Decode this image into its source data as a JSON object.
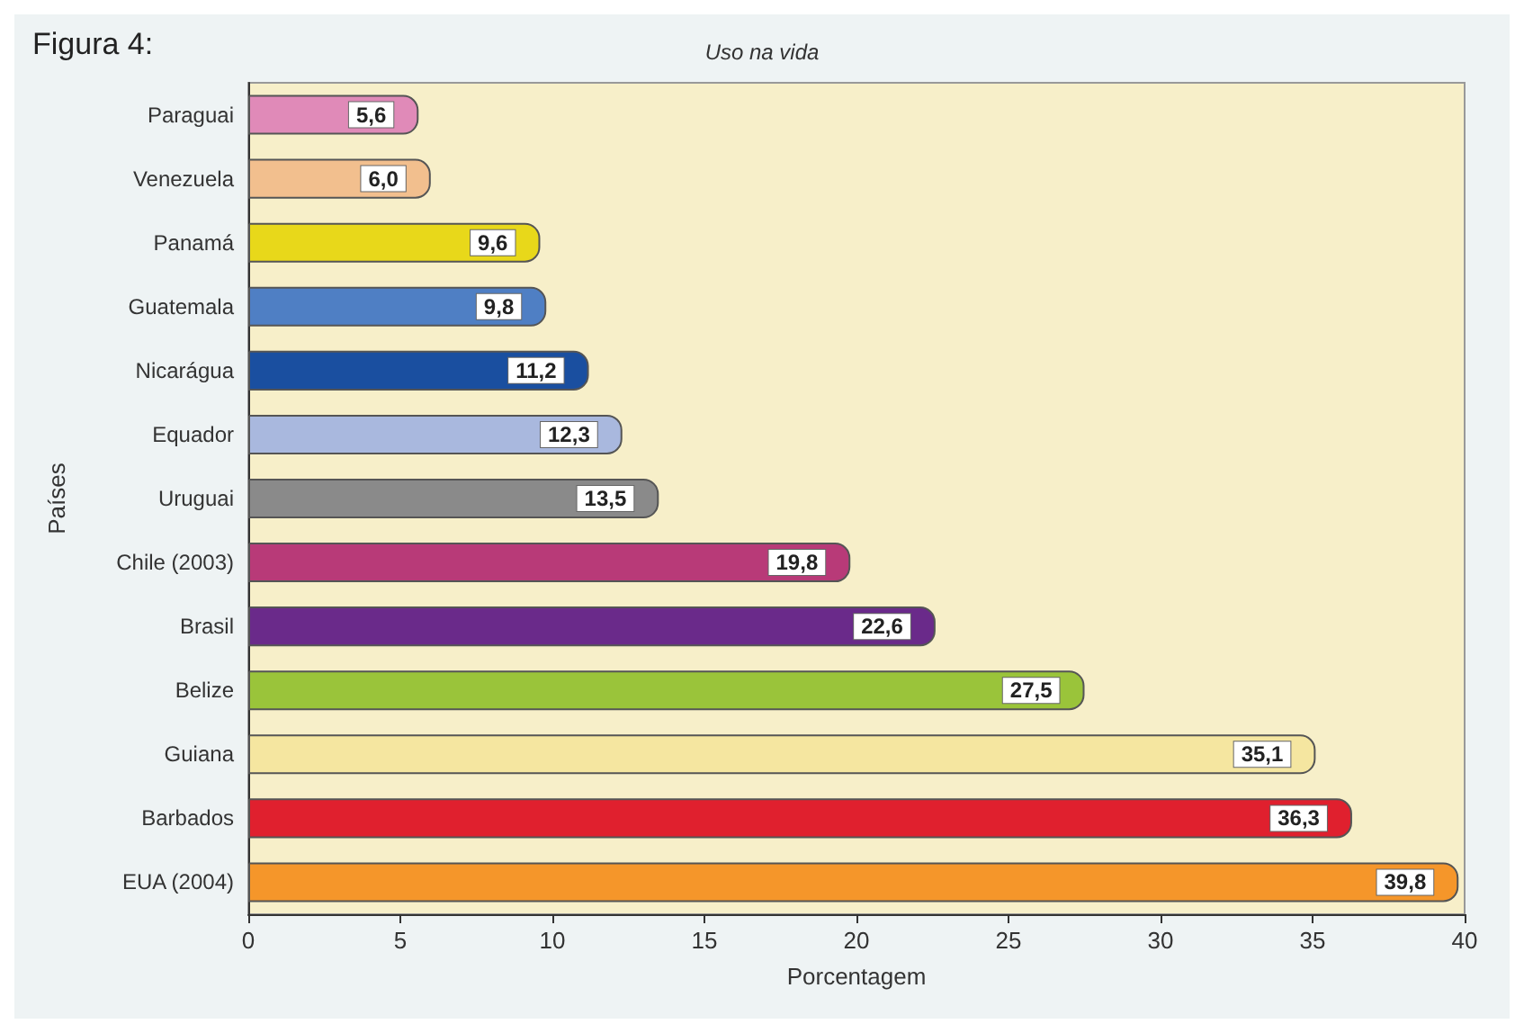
{
  "chart_data": {
    "type": "bar",
    "orientation": "horizontal",
    "title": "Uso na vida",
    "annotations": [
      "Figura 4:"
    ],
    "xlabel": "Porcentagem",
    "ylabel": "Países",
    "categories": [
      "Paraguai",
      "Venezuela",
      "Panamá",
      "Guatemala",
      "Nicarágua",
      "Equador",
      "Uruguai",
      "Chile (2003)",
      "Brasil",
      "Belize",
      "Guiana",
      "Barbados",
      "EUA (2004)"
    ],
    "values": [
      5.6,
      6.0,
      9.6,
      9.8,
      11.2,
      12.3,
      13.5,
      19.8,
      22.6,
      27.5,
      35.1,
      36.3,
      39.8
    ],
    "value_labels": [
      "5,6",
      "6,0",
      "9,6",
      "9,8",
      "11,2",
      "12,3",
      "13,5",
      "19,8",
      "22,6",
      "27,5",
      "35,1",
      "36,3",
      "39,8"
    ],
    "colors": [
      "#e08ab8",
      "#f2bf8e",
      "#e8d81a",
      "#4f7fc4",
      "#1a4fa0",
      "#a9b8de",
      "#8a8a8a",
      "#b83a78",
      "#6a2a8a",
      "#9ac43a",
      "#f5e6a0",
      "#e0202e",
      "#f5962a"
    ],
    "xlim": [
      0,
      40
    ],
    "xticks": [
      0,
      5,
      10,
      15,
      20,
      25,
      30,
      35,
      40
    ],
    "grid": false
  }
}
